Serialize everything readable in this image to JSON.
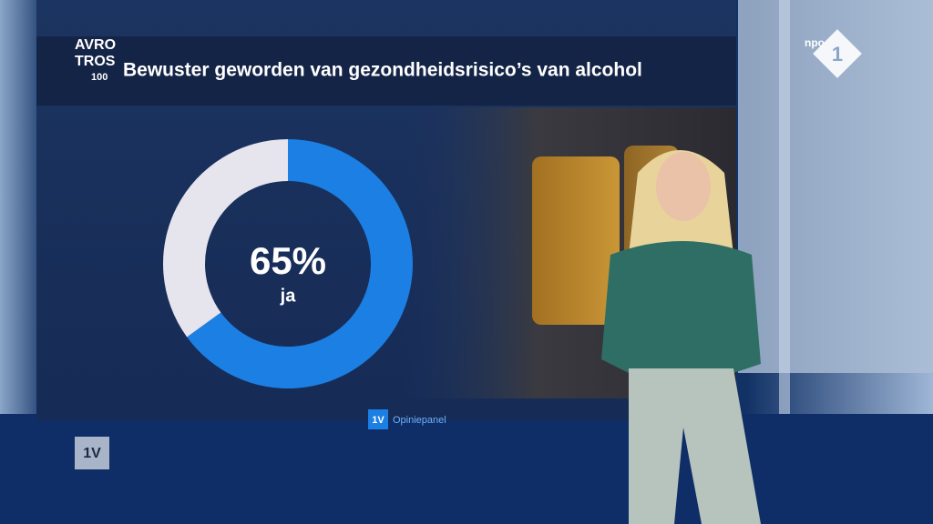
{
  "logo": [
    "AVRO",
    "TROS",
    "100"
  ],
  "channel": {
    "brand": "npo",
    "number": "1"
  },
  "corner_badge": "1V",
  "source": {
    "badge": "1V",
    "name": "Opiniepanel"
  },
  "chart_data": {
    "type": "pie",
    "donut": true,
    "title": "Bewuster geworden van gezondheidsrisico’s van alcohol",
    "categories": [
      "ja",
      null
    ],
    "values": [
      65,
      35
    ],
    "value_labels": [
      "65%",
      null
    ],
    "colors": [
      "#1b7fe3",
      "#e6e4ec"
    ]
  }
}
